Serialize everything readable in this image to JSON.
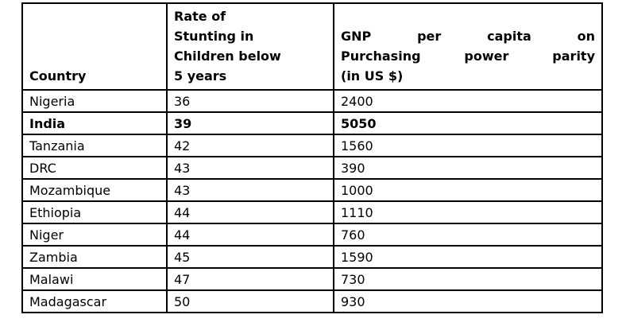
{
  "colors": {
    "border": "#000000",
    "text": "#000000",
    "background": "#ffffff"
  },
  "table": {
    "headers": {
      "country": "Country",
      "stunting_lines": [
        "Rate of",
        "Stunting in",
        "Children below",
        "5 years"
      ],
      "gnp_lines": [
        "GNP per capita on",
        "Purchasing power parity",
        "(in US $)"
      ]
    },
    "rows": [
      {
        "country": "Nigeria",
        "rate": "36",
        "gnp": "2400"
      },
      {
        "country": "India",
        "rate": "39",
        "gnp": "5050"
      },
      {
        "country": "Tanzania",
        "rate": "42",
        "gnp": "1560"
      },
      {
        "country": "DRC",
        "rate": "43",
        "gnp": "390"
      },
      {
        "country": "Mozambique",
        "rate": "43",
        "gnp": "1000"
      },
      {
        "country": "Ethiopia",
        "rate": "44",
        "gnp": "1110"
      },
      {
        "country": "Niger",
        "rate": "44",
        "gnp": "760"
      },
      {
        "country": "Zambia",
        "rate": "45",
        "gnp": "1590"
      },
      {
        "country": "Malawi",
        "rate": "47",
        "gnp": "730"
      },
      {
        "country": "Madagascar",
        "rate": "50",
        "gnp": "930"
      }
    ]
  },
  "chart_data": {
    "type": "table",
    "title": "",
    "columns": [
      "Country",
      "Rate of Stunting in Children below 5 years",
      "GNP per capita on Purchasing power parity (in US $)"
    ],
    "rows": [
      [
        "Nigeria",
        36,
        2400
      ],
      [
        "India",
        39,
        5050
      ],
      [
        "Tanzania",
        42,
        1560
      ],
      [
        "DRC",
        43,
        390
      ],
      [
        "Mozambique",
        43,
        1000
      ],
      [
        "Ethiopia",
        44,
        1110
      ],
      [
        "Niger",
        44,
        760
      ],
      [
        "Zambia",
        45,
        1590
      ],
      [
        "Malawi",
        47,
        730
      ],
      [
        "Madagascar",
        50,
        930
      ]
    ],
    "emphasized_row": "India"
  }
}
